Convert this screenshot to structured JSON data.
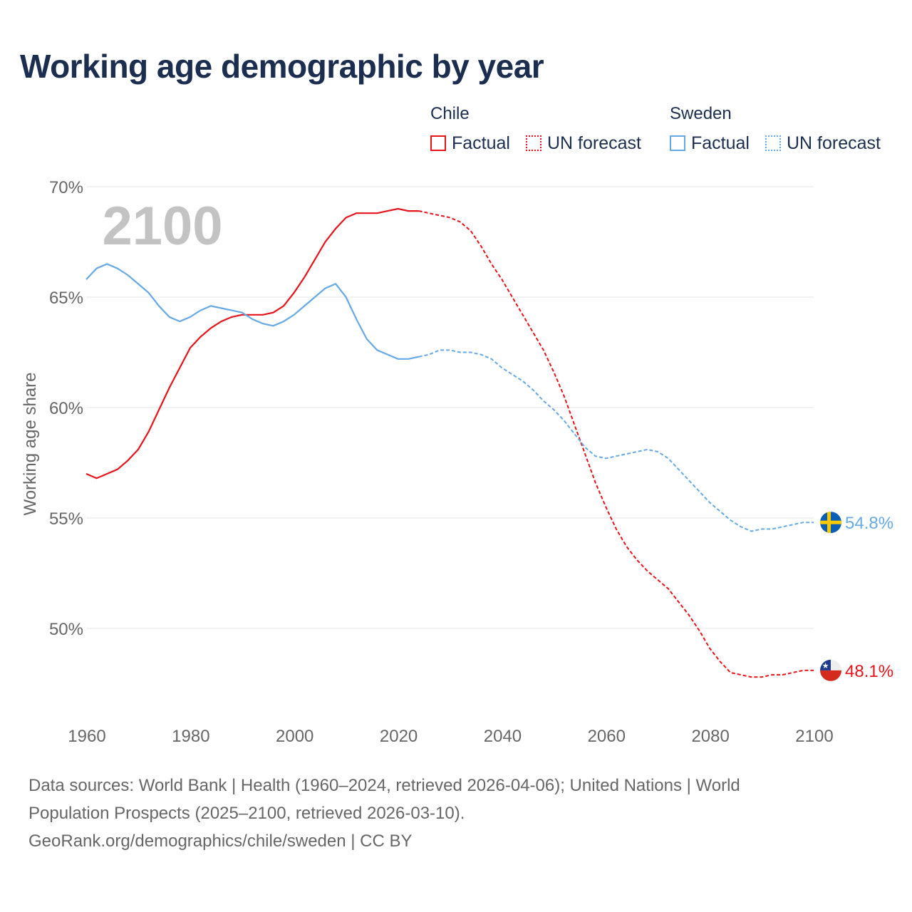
{
  "header": {
    "title": "Working age demographic by year"
  },
  "legend": {
    "groups": [
      {
        "name": "Chile",
        "factual_label": "Factual",
        "forecast_label": "UN forecast",
        "color": "#e8141b"
      },
      {
        "name": "Sweden",
        "factual_label": "Factual",
        "forecast_label": "UN forecast",
        "color": "#66a9e4"
      }
    ]
  },
  "footer": {
    "line1": "Data sources: World Bank | Health (1960–2024, retrieved 2026-04-06); United Nations | World",
    "line2": "Population Prospects (2025–2100, retrieved 2026-03-10).",
    "line3": "GeoRank.org/demographics/chile/sweden | CC BY"
  },
  "chart_data": {
    "type": "line",
    "title": "Working age demographic by year",
    "xlabel": "",
    "ylabel": "Working age share",
    "year_watermark": "2100",
    "xlim": [
      1960,
      2100
    ],
    "ylim": [
      46,
      70
    ],
    "x_ticks": [
      1960,
      1980,
      2000,
      2020,
      2040,
      2060,
      2080,
      2100
    ],
    "y_ticks": [
      50,
      55,
      60,
      65,
      70
    ],
    "y_tick_labels": [
      "50%",
      "55%",
      "60%",
      "65%",
      "70%"
    ],
    "grid": true,
    "series": [
      {
        "name": "Chile",
        "color": "#e8141b",
        "end_label": "48.1%",
        "factual": [
          [
            1960,
            57.0
          ],
          [
            1962,
            56.8
          ],
          [
            1964,
            57.0
          ],
          [
            1966,
            57.2
          ],
          [
            1968,
            57.6
          ],
          [
            1970,
            58.1
          ],
          [
            1972,
            58.9
          ],
          [
            1974,
            59.9
          ],
          [
            1976,
            60.9
          ],
          [
            1978,
            61.8
          ],
          [
            1980,
            62.7
          ],
          [
            1982,
            63.2
          ],
          [
            1984,
            63.6
          ],
          [
            1986,
            63.9
          ],
          [
            1988,
            64.1
          ],
          [
            1990,
            64.2
          ],
          [
            1992,
            64.2
          ],
          [
            1994,
            64.2
          ],
          [
            1996,
            64.3
          ],
          [
            1998,
            64.6
          ],
          [
            2000,
            65.2
          ],
          [
            2002,
            65.9
          ],
          [
            2004,
            66.7
          ],
          [
            2006,
            67.5
          ],
          [
            2008,
            68.1
          ],
          [
            2010,
            68.6
          ],
          [
            2012,
            68.8
          ],
          [
            2014,
            68.8
          ],
          [
            2016,
            68.8
          ],
          [
            2018,
            68.9
          ],
          [
            2020,
            69.0
          ],
          [
            2022,
            68.9
          ],
          [
            2024,
            68.9
          ]
        ],
        "forecast": [
          [
            2024,
            68.9
          ],
          [
            2026,
            68.8
          ],
          [
            2028,
            68.7
          ],
          [
            2030,
            68.6
          ],
          [
            2032,
            68.4
          ],
          [
            2034,
            68.0
          ],
          [
            2036,
            67.3
          ],
          [
            2038,
            66.5
          ],
          [
            2040,
            65.8
          ],
          [
            2042,
            65.0
          ],
          [
            2044,
            64.2
          ],
          [
            2046,
            63.4
          ],
          [
            2048,
            62.6
          ],
          [
            2050,
            61.6
          ],
          [
            2052,
            60.5
          ],
          [
            2054,
            59.2
          ],
          [
            2056,
            57.9
          ],
          [
            2058,
            56.6
          ],
          [
            2060,
            55.5
          ],
          [
            2062,
            54.5
          ],
          [
            2064,
            53.7
          ],
          [
            2066,
            53.1
          ],
          [
            2068,
            52.6
          ],
          [
            2070,
            52.2
          ],
          [
            2072,
            51.8
          ],
          [
            2074,
            51.2
          ],
          [
            2076,
            50.6
          ],
          [
            2078,
            49.9
          ],
          [
            2080,
            49.1
          ],
          [
            2082,
            48.5
          ],
          [
            2084,
            48.0
          ],
          [
            2086,
            47.9
          ],
          [
            2088,
            47.8
          ],
          [
            2090,
            47.8
          ],
          [
            2092,
            47.9
          ],
          [
            2094,
            47.9
          ],
          [
            2096,
            48.0
          ],
          [
            2098,
            48.1
          ],
          [
            2100,
            48.1
          ]
        ]
      },
      {
        "name": "Sweden",
        "color": "#66a9e4",
        "end_label": "54.8%",
        "factual": [
          [
            1960,
            65.8
          ],
          [
            1962,
            66.3
          ],
          [
            1964,
            66.5
          ],
          [
            1966,
            66.3
          ],
          [
            1968,
            66.0
          ],
          [
            1970,
            65.6
          ],
          [
            1972,
            65.2
          ],
          [
            1974,
            64.6
          ],
          [
            1976,
            64.1
          ],
          [
            1978,
            63.9
          ],
          [
            1980,
            64.1
          ],
          [
            1982,
            64.4
          ],
          [
            1984,
            64.6
          ],
          [
            1986,
            64.5
          ],
          [
            1988,
            64.4
          ],
          [
            1990,
            64.3
          ],
          [
            1992,
            64.0
          ],
          [
            1994,
            63.8
          ],
          [
            1996,
            63.7
          ],
          [
            1998,
            63.9
          ],
          [
            2000,
            64.2
          ],
          [
            2002,
            64.6
          ],
          [
            2004,
            65.0
          ],
          [
            2006,
            65.4
          ],
          [
            2008,
            65.6
          ],
          [
            2010,
            65.0
          ],
          [
            2012,
            64.0
          ],
          [
            2014,
            63.1
          ],
          [
            2016,
            62.6
          ],
          [
            2018,
            62.4
          ],
          [
            2020,
            62.2
          ],
          [
            2022,
            62.2
          ],
          [
            2024,
            62.3
          ]
        ],
        "forecast": [
          [
            2024,
            62.3
          ],
          [
            2026,
            62.4
          ],
          [
            2028,
            62.6
          ],
          [
            2030,
            62.6
          ],
          [
            2032,
            62.5
          ],
          [
            2034,
            62.5
          ],
          [
            2036,
            62.4
          ],
          [
            2038,
            62.2
          ],
          [
            2040,
            61.8
          ],
          [
            2042,
            61.5
          ],
          [
            2044,
            61.2
          ],
          [
            2046,
            60.8
          ],
          [
            2048,
            60.3
          ],
          [
            2050,
            59.9
          ],
          [
            2052,
            59.4
          ],
          [
            2054,
            58.8
          ],
          [
            2056,
            58.2
          ],
          [
            2058,
            57.8
          ],
          [
            2060,
            57.7
          ],
          [
            2062,
            57.8
          ],
          [
            2064,
            57.9
          ],
          [
            2066,
            58.0
          ],
          [
            2068,
            58.1
          ],
          [
            2070,
            58.0
          ],
          [
            2072,
            57.7
          ],
          [
            2074,
            57.2
          ],
          [
            2076,
            56.7
          ],
          [
            2078,
            56.2
          ],
          [
            2080,
            55.7
          ],
          [
            2082,
            55.3
          ],
          [
            2084,
            54.9
          ],
          [
            2086,
            54.6
          ],
          [
            2088,
            54.4
          ],
          [
            2090,
            54.5
          ],
          [
            2092,
            54.5
          ],
          [
            2094,
            54.6
          ],
          [
            2096,
            54.7
          ],
          [
            2098,
            54.8
          ],
          [
            2100,
            54.8
          ]
        ]
      }
    ]
  }
}
